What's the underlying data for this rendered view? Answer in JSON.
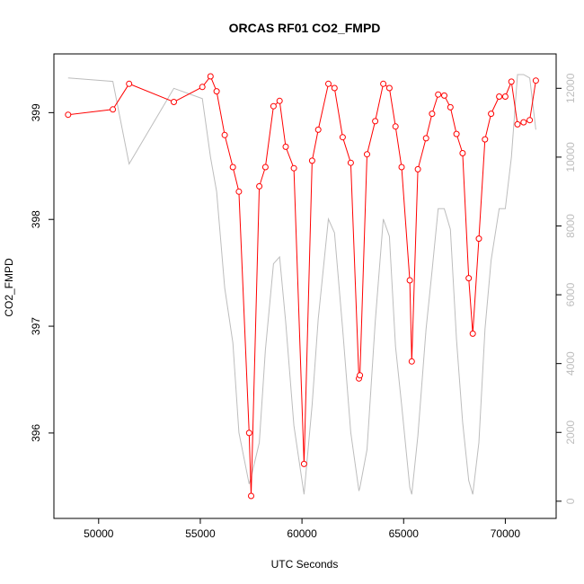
{
  "chart_data": {
    "type": "line",
    "title": "ORCAS RF01 CO2_FMPD",
    "xlabel": "UTC Seconds",
    "ylabel": "CO2_FMPD",
    "xlim": [
      47800,
      72500
    ],
    "ylim": [
      395.2,
      399.55
    ],
    "y2lim": [
      -500,
      13000
    ],
    "x_ticks": [
      50000,
      55000,
      60000,
      65000,
      70000
    ],
    "y_ticks": [
      396,
      397,
      398,
      399
    ],
    "y2_ticks": [
      0,
      2000,
      4000,
      6000,
      8000,
      10000,
      12000
    ],
    "grid": false,
    "series": [
      {
        "axis": "left",
        "color": "#ff0000",
        "markers": "open-circle",
        "x": [
          48500,
          50700,
          51500,
          53700,
          55100,
          55500,
          55800,
          56200,
          56600,
          56900,
          57400,
          57500,
          57900,
          58200,
          58600,
          58900,
          59200,
          59600,
          60100,
          60500,
          60800,
          61300,
          61600,
          62000,
          62400,
          62800,
          62850,
          63200,
          63600,
          64000,
          64300,
          64600,
          64900,
          65300,
          65400,
          65700,
          66100,
          66400,
          66700,
          67000,
          67300,
          67600,
          67900,
          68200,
          68400,
          68700,
          69000,
          69300,
          69700,
          70000,
          70300,
          70600,
          70900,
          71200,
          71500
        ],
        "y": [
          398.98,
          399.03,
          399.27,
          399.1,
          399.24,
          399.34,
          399.2,
          398.79,
          398.49,
          398.26,
          396.0,
          395.41,
          398.31,
          398.49,
          399.06,
          399.11,
          398.68,
          398.48,
          395.71,
          398.55,
          398.84,
          399.27,
          399.23,
          398.77,
          398.53,
          396.51,
          396.54,
          398.61,
          398.92,
          399.27,
          399.23,
          398.87,
          398.49,
          397.43,
          396.67,
          398.47,
          398.76,
          398.99,
          399.17,
          399.16,
          399.05,
          398.8,
          398.62,
          397.45,
          396.93,
          397.82,
          398.75,
          398.99,
          399.15,
          399.15,
          399.29,
          398.89,
          398.91,
          398.93,
          399.3
        ]
      },
      {
        "axis": "right",
        "color": "#bdbdbd",
        "markers": "none",
        "x": [
          48500,
          50700,
          51500,
          53700,
          55100,
          55500,
          55800,
          56200,
          56600,
          56900,
          57400,
          57500,
          57900,
          58200,
          58600,
          58900,
          59200,
          59600,
          60100,
          60500,
          60800,
          61300,
          61600,
          62000,
          62400,
          62800,
          62850,
          63200,
          63600,
          64000,
          64300,
          64600,
          64900,
          65300,
          65400,
          65700,
          66100,
          66400,
          66700,
          67000,
          67300,
          67600,
          67900,
          68200,
          68400,
          68700,
          69000,
          69300,
          69700,
          70000,
          70300,
          70600,
          70900,
          71200,
          71500
        ],
        "y": [
          12300,
          12200,
          9800,
          12000,
          11700,
          10000,
          9000,
          6200,
          4600,
          2000,
          500,
          700,
          1700,
          4400,
          6900,
          7100,
          5200,
          2200,
          200,
          2800,
          5300,
          8200,
          7800,
          5000,
          2000,
          300,
          400,
          1500,
          5200,
          8200,
          7700,
          4500,
          2800,
          400,
          200,
          1900,
          5000,
          6700,
          8500,
          8500,
          7900,
          4700,
          2300,
          600,
          200,
          1700,
          5000,
          7000,
          8500,
          8500,
          10000,
          12400,
          12400,
          12300,
          10800
        ]
      }
    ]
  }
}
